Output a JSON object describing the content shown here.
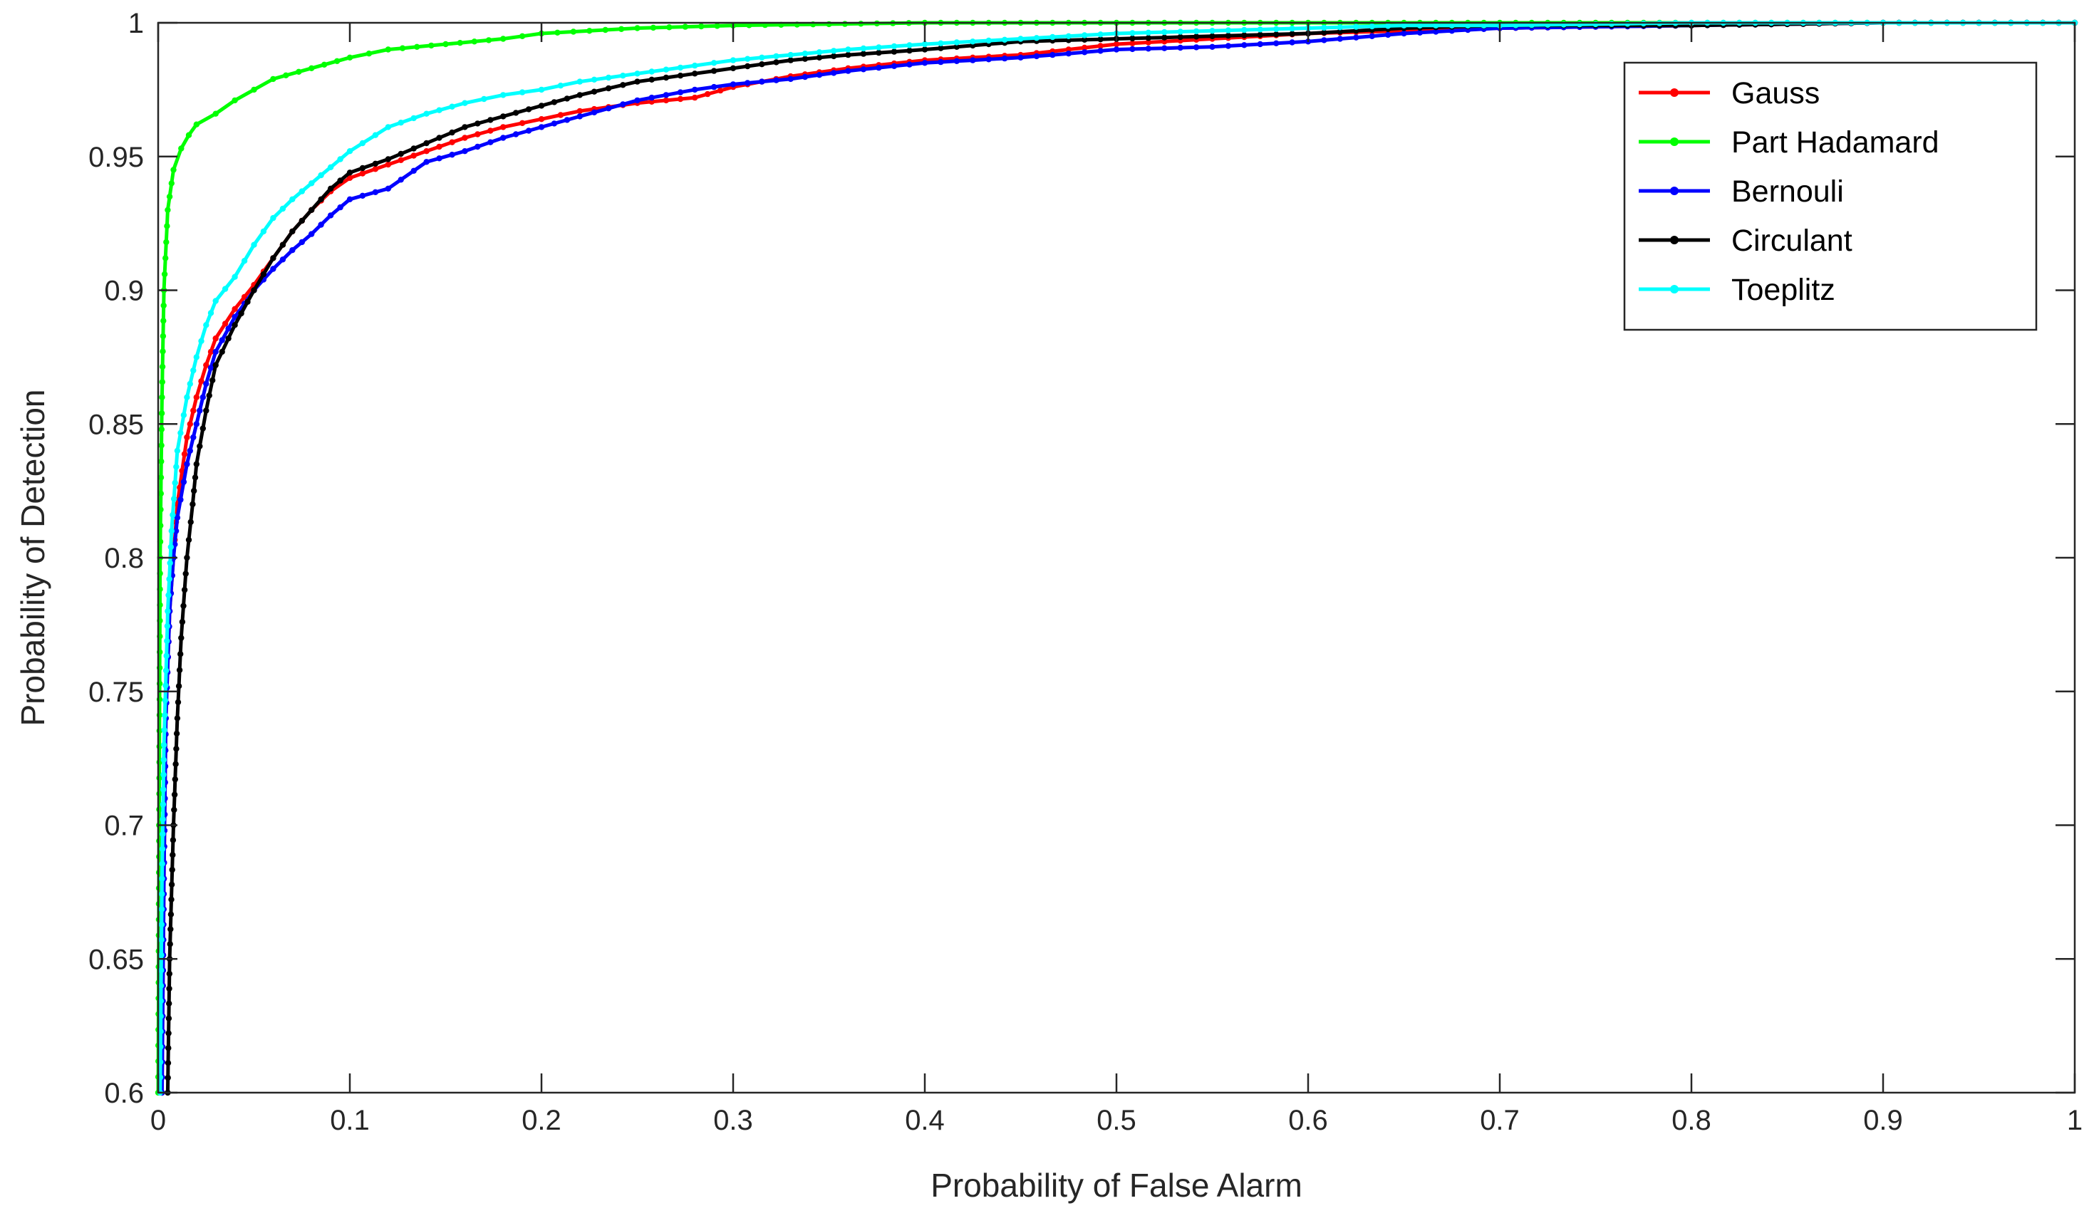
{
  "chart_data": {
    "type": "line",
    "title": "",
    "xlabel": "Probability of False Alarm",
    "ylabel": "Probability of Detection",
    "xlim": [
      0,
      1
    ],
    "ylim": [
      0.6,
      1
    ],
    "xticks": [
      "0",
      "0.1",
      "0.2",
      "0.3",
      "0.4",
      "0.5",
      "0.6",
      "0.7",
      "0.8",
      "0.9",
      "1"
    ],
    "yticks": [
      "0.6",
      "0.65",
      "0.7",
      "0.75",
      "0.8",
      "0.85",
      "0.9",
      "0.95",
      "1"
    ],
    "grid": false,
    "legend_position": "top-right",
    "series": [
      {
        "name": "Gauss",
        "color": "#ff0000",
        "points": [
          [
            0.002,
            0.6
          ],
          [
            0.003,
            0.68
          ],
          [
            0.004,
            0.74
          ],
          [
            0.006,
            0.78
          ],
          [
            0.008,
            0.8
          ],
          [
            0.01,
            0.82
          ],
          [
            0.015,
            0.845
          ],
          [
            0.02,
            0.86
          ],
          [
            0.025,
            0.872
          ],
          [
            0.03,
            0.882
          ],
          [
            0.04,
            0.893
          ],
          [
            0.05,
            0.902
          ],
          [
            0.06,
            0.912
          ],
          [
            0.07,
            0.922
          ],
          [
            0.08,
            0.93
          ],
          [
            0.09,
            0.937
          ],
          [
            0.1,
            0.942
          ],
          [
            0.12,
            0.947
          ],
          [
            0.14,
            0.952
          ],
          [
            0.16,
            0.957
          ],
          [
            0.18,
            0.961
          ],
          [
            0.2,
            0.964
          ],
          [
            0.22,
            0.967
          ],
          [
            0.25,
            0.97
          ],
          [
            0.28,
            0.972
          ],
          [
            0.3,
            0.976
          ],
          [
            0.33,
            0.98
          ],
          [
            0.36,
            0.983
          ],
          [
            0.4,
            0.986
          ],
          [
            0.45,
            0.988
          ],
          [
            0.5,
            0.992
          ],
          [
            0.55,
            0.994
          ],
          [
            0.6,
            0.996
          ],
          [
            0.65,
            0.997
          ],
          [
            0.7,
            0.998
          ],
          [
            0.8,
            0.999
          ],
          [
            0.9,
            1.0
          ],
          [
            1.0,
            1.0
          ]
        ]
      },
      {
        "name": "Part Hadamard",
        "color": "#00ff00",
        "points": [
          [
            0.0,
            0.6
          ],
          [
            0.0005,
            0.7
          ],
          [
            0.001,
            0.8
          ],
          [
            0.002,
            0.86
          ],
          [
            0.003,
            0.9
          ],
          [
            0.005,
            0.93
          ],
          [
            0.008,
            0.945
          ],
          [
            0.012,
            0.953
          ],
          [
            0.016,
            0.958
          ],
          [
            0.02,
            0.962
          ],
          [
            0.03,
            0.966
          ],
          [
            0.04,
            0.971
          ],
          [
            0.05,
            0.975
          ],
          [
            0.06,
            0.979
          ],
          [
            0.08,
            0.983
          ],
          [
            0.1,
            0.987
          ],
          [
            0.12,
            0.99
          ],
          [
            0.15,
            0.992
          ],
          [
            0.18,
            0.994
          ],
          [
            0.2,
            0.996
          ],
          [
            0.25,
            0.998
          ],
          [
            0.3,
            0.999
          ],
          [
            0.4,
            1.0
          ],
          [
            0.5,
            1.0
          ],
          [
            0.6,
            1.0
          ],
          [
            0.8,
            1.0
          ],
          [
            1.0,
            1.0
          ]
        ]
      },
      {
        "name": "Bernouli",
        "color": "#0000ff",
        "points": [
          [
            0.002,
            0.6
          ],
          [
            0.003,
            0.68
          ],
          [
            0.004,
            0.74
          ],
          [
            0.006,
            0.78
          ],
          [
            0.008,
            0.8
          ],
          [
            0.01,
            0.815
          ],
          [
            0.015,
            0.835
          ],
          [
            0.02,
            0.85
          ],
          [
            0.025,
            0.865
          ],
          [
            0.03,
            0.877
          ],
          [
            0.04,
            0.89
          ],
          [
            0.05,
            0.9
          ],
          [
            0.06,
            0.908
          ],
          [
            0.07,
            0.915
          ],
          [
            0.08,
            0.921
          ],
          [
            0.09,
            0.928
          ],
          [
            0.1,
            0.934
          ],
          [
            0.12,
            0.938
          ],
          [
            0.14,
            0.948
          ],
          [
            0.16,
            0.952
          ],
          [
            0.18,
            0.957
          ],
          [
            0.2,
            0.961
          ],
          [
            0.22,
            0.965
          ],
          [
            0.25,
            0.971
          ],
          [
            0.28,
            0.975
          ],
          [
            0.3,
            0.977
          ],
          [
            0.33,
            0.979
          ],
          [
            0.36,
            0.982
          ],
          [
            0.4,
            0.985
          ],
          [
            0.45,
            0.987
          ],
          [
            0.5,
            0.99
          ],
          [
            0.55,
            0.991
          ],
          [
            0.6,
            0.993
          ],
          [
            0.65,
            0.996
          ],
          [
            0.7,
            0.998
          ],
          [
            0.8,
            0.999
          ],
          [
            0.9,
            1.0
          ],
          [
            1.0,
            1.0
          ]
        ]
      },
      {
        "name": "Circulant",
        "color": "#000000",
        "points": [
          [
            0.005,
            0.6
          ],
          [
            0.006,
            0.65
          ],
          [
            0.008,
            0.7
          ],
          [
            0.01,
            0.74
          ],
          [
            0.012,
            0.77
          ],
          [
            0.015,
            0.8
          ],
          [
            0.018,
            0.82
          ],
          [
            0.02,
            0.835
          ],
          [
            0.025,
            0.855
          ],
          [
            0.03,
            0.872
          ],
          [
            0.04,
            0.887
          ],
          [
            0.05,
            0.9
          ],
          [
            0.06,
            0.912
          ],
          [
            0.07,
            0.922
          ],
          [
            0.08,
            0.93
          ],
          [
            0.09,
            0.938
          ],
          [
            0.1,
            0.944
          ],
          [
            0.12,
            0.949
          ],
          [
            0.14,
            0.955
          ],
          [
            0.16,
            0.961
          ],
          [
            0.18,
            0.965
          ],
          [
            0.2,
            0.969
          ],
          [
            0.22,
            0.973
          ],
          [
            0.25,
            0.978
          ],
          [
            0.28,
            0.981
          ],
          [
            0.3,
            0.983
          ],
          [
            0.33,
            0.986
          ],
          [
            0.36,
            0.988
          ],
          [
            0.4,
            0.99
          ],
          [
            0.45,
            0.993
          ],
          [
            0.5,
            0.994
          ],
          [
            0.55,
            0.995
          ],
          [
            0.6,
            0.996
          ],
          [
            0.65,
            0.998
          ],
          [
            0.7,
            0.999
          ],
          [
            0.8,
            0.999
          ],
          [
            0.9,
            1.0
          ],
          [
            1.0,
            1.0
          ]
        ]
      },
      {
        "name": "Toeplitz",
        "color": "#00ffff",
        "points": [
          [
            0.001,
            0.6
          ],
          [
            0.002,
            0.68
          ],
          [
            0.003,
            0.73
          ],
          [
            0.005,
            0.78
          ],
          [
            0.007,
            0.81
          ],
          [
            0.01,
            0.84
          ],
          [
            0.015,
            0.86
          ],
          [
            0.02,
            0.875
          ],
          [
            0.025,
            0.887
          ],
          [
            0.03,
            0.896
          ],
          [
            0.04,
            0.905
          ],
          [
            0.05,
            0.917
          ],
          [
            0.06,
            0.927
          ],
          [
            0.07,
            0.934
          ],
          [
            0.08,
            0.94
          ],
          [
            0.09,
            0.946
          ],
          [
            0.1,
            0.952
          ],
          [
            0.12,
            0.961
          ],
          [
            0.14,
            0.966
          ],
          [
            0.16,
            0.97
          ],
          [
            0.18,
            0.973
          ],
          [
            0.2,
            0.975
          ],
          [
            0.22,
            0.978
          ],
          [
            0.25,
            0.981
          ],
          [
            0.28,
            0.984
          ],
          [
            0.3,
            0.986
          ],
          [
            0.33,
            0.988
          ],
          [
            0.36,
            0.99
          ],
          [
            0.4,
            0.992
          ],
          [
            0.45,
            0.994
          ],
          [
            0.5,
            0.996
          ],
          [
            0.55,
            0.997
          ],
          [
            0.6,
            0.998
          ],
          [
            0.65,
            0.999
          ],
          [
            0.7,
            0.999
          ],
          [
            0.8,
            1.0
          ],
          [
            0.9,
            1.0
          ],
          [
            1.0,
            1.0
          ]
        ]
      }
    ]
  }
}
